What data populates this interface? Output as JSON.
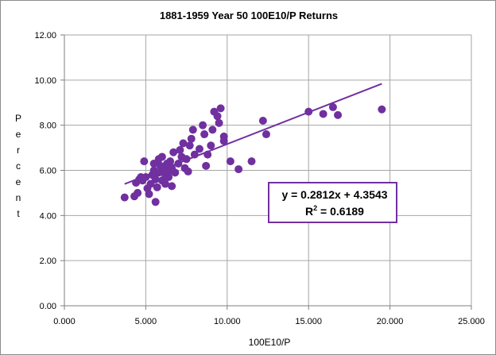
{
  "chart_data": {
    "type": "scatter",
    "title": "1881-1959 Year 50 100E10/P Returns",
    "xlabel": "100E10/P",
    "ylabel": "Percent",
    "xlim": [
      0,
      25
    ],
    "ylim": [
      0,
      12
    ],
    "x_ticks": [
      "0.000",
      "5.000",
      "10.000",
      "15.000",
      "20.000",
      "25.000"
    ],
    "y_ticks": [
      "0.00",
      "2.00",
      "4.00",
      "6.00",
      "8.00",
      "10.00",
      "12.00"
    ],
    "grid": true,
    "marker_color": "#7030A0",
    "trendline": {
      "slope": 0.2812,
      "intercept": 4.3543,
      "x_range": [
        3.7,
        19.5
      ]
    },
    "equation": "y = 0.2812x + 4.3543",
    "r_squared_label": "R",
    "r_squared_sup": "2",
    "r_squared_value": " = 0.6189",
    "points": [
      {
        "x": 3.7,
        "y": 4.8
      },
      {
        "x": 4.3,
        "y": 4.85
      },
      {
        "x": 4.5,
        "y": 5.0
      },
      {
        "x": 4.4,
        "y": 5.45
      },
      {
        "x": 4.6,
        "y": 5.6
      },
      {
        "x": 4.7,
        "y": 5.7
      },
      {
        "x": 4.8,
        "y": 5.55
      },
      {
        "x": 5.0,
        "y": 5.7
      },
      {
        "x": 4.9,
        "y": 6.4
      },
      {
        "x": 5.1,
        "y": 5.2
      },
      {
        "x": 5.2,
        "y": 4.95
      },
      {
        "x": 5.3,
        "y": 5.4
      },
      {
        "x": 5.4,
        "y": 5.8
      },
      {
        "x": 5.5,
        "y": 6.0
      },
      {
        "x": 5.6,
        "y": 5.6
      },
      {
        "x": 5.5,
        "y": 6.3
      },
      {
        "x": 5.7,
        "y": 5.25
      },
      {
        "x": 5.6,
        "y": 4.6
      },
      {
        "x": 5.8,
        "y": 5.9
      },
      {
        "x": 5.9,
        "y": 6.2
      },
      {
        "x": 5.8,
        "y": 6.5
      },
      {
        "x": 6.0,
        "y": 5.55
      },
      {
        "x": 6.1,
        "y": 6.0
      },
      {
        "x": 6.0,
        "y": 6.6
      },
      {
        "x": 6.2,
        "y": 5.8
      },
      {
        "x": 6.3,
        "y": 6.3
      },
      {
        "x": 6.2,
        "y": 5.4
      },
      {
        "x": 6.4,
        "y": 5.95
      },
      {
        "x": 6.5,
        "y": 6.4
      },
      {
        "x": 6.4,
        "y": 5.7
      },
      {
        "x": 6.6,
        "y": 5.3
      },
      {
        "x": 6.6,
        "y": 6.1
      },
      {
        "x": 6.7,
        "y": 6.8
      },
      {
        "x": 6.8,
        "y": 5.9
      },
      {
        "x": 7.0,
        "y": 6.3
      },
      {
        "x": 7.1,
        "y": 6.9
      },
      {
        "x": 7.2,
        "y": 6.6
      },
      {
        "x": 7.3,
        "y": 7.2
      },
      {
        "x": 7.4,
        "y": 6.1
      },
      {
        "x": 7.5,
        "y": 6.5
      },
      {
        "x": 7.6,
        "y": 5.95
      },
      {
        "x": 7.7,
        "y": 7.1
      },
      {
        "x": 7.8,
        "y": 7.4
      },
      {
        "x": 7.9,
        "y": 7.8
      },
      {
        "x": 8.0,
        "y": 6.7
      },
      {
        "x": 8.3,
        "y": 6.95
      },
      {
        "x": 8.5,
        "y": 8.0
      },
      {
        "x": 8.6,
        "y": 7.6
      },
      {
        "x": 8.7,
        "y": 6.2
      },
      {
        "x": 8.8,
        "y": 6.7
      },
      {
        "x": 9.0,
        "y": 7.1
      },
      {
        "x": 9.1,
        "y": 7.8
      },
      {
        "x": 9.2,
        "y": 8.6
      },
      {
        "x": 9.4,
        "y": 8.4
      },
      {
        "x": 9.6,
        "y": 8.75
      },
      {
        "x": 9.5,
        "y": 8.1
      },
      {
        "x": 9.8,
        "y": 7.3
      },
      {
        "x": 9.8,
        "y": 7.5
      },
      {
        "x": 10.2,
        "y": 6.4
      },
      {
        "x": 10.7,
        "y": 6.05
      },
      {
        "x": 11.5,
        "y": 6.4
      },
      {
        "x": 12.2,
        "y": 8.2
      },
      {
        "x": 12.4,
        "y": 7.6
      },
      {
        "x": 15.0,
        "y": 8.6
      },
      {
        "x": 15.9,
        "y": 8.5
      },
      {
        "x": 16.5,
        "y": 8.8
      },
      {
        "x": 16.8,
        "y": 8.45
      },
      {
        "x": 19.5,
        "y": 8.7
      }
    ]
  }
}
